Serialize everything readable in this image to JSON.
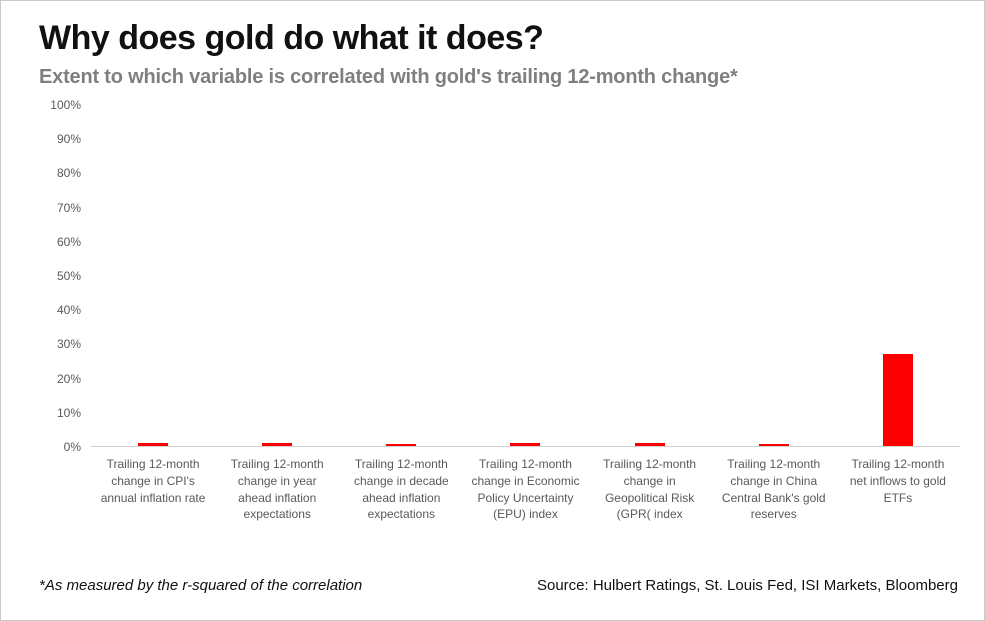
{
  "header": {
    "title": "Why does gold do what it does?",
    "subtitle": "Extent to which variable is correlated with gold's trailing 12-month change*"
  },
  "footer": {
    "footnote": "*As measured by the r-squared of the correlation",
    "source": "Source: Hulbert Ratings, St. Louis Fed, ISI Markets, Bloomberg"
  },
  "chart_data": {
    "type": "bar",
    "title": "Why does gold do what it does?",
    "subtitle": "Extent to which variable is correlated with gold's trailing 12-month change*",
    "categories": [
      "Trailing 12-month change in CPI's annual inflation rate",
      "Trailing 12-month change in year ahead inflation expectations",
      "Trailing 12-month change in decade ahead inflation expectations",
      "Trailing 12-month change in Economic Policy Uncertainty (EPU) index",
      "Trailing 12-month change in Geopolitical Risk (GPR( index",
      "Trailing 12-month change in China Central Bank's gold reserves",
      "Trailing 12-month net inflows to gold ETFs"
    ],
    "values": [
      1,
      1,
      0.5,
      1,
      1,
      0.5,
      27
    ],
    "ylim": [
      0,
      100
    ],
    "yticks_percent": [
      0,
      10,
      20,
      30,
      40,
      50,
      60,
      70,
      80,
      90,
      100
    ],
    "ytick_labels": [
      "0%",
      "10%",
      "20%",
      "30%",
      "40%",
      "50%",
      "60%",
      "70%",
      "80%",
      "90%",
      "100%"
    ],
    "bar_color": "#fa0000",
    "grid": false,
    "legend": false,
    "xlabel": "",
    "ylabel": ""
  }
}
